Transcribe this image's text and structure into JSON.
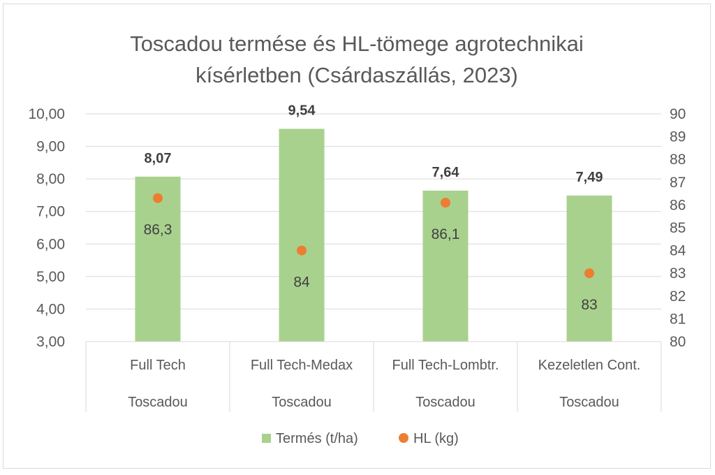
{
  "chart_data": {
    "type": "bar",
    "title_lines": [
      "Toscadou termése és HL-tömege agrotechnikai",
      "kísérletben (Csárdaszállás, 2023)"
    ],
    "categories": [
      {
        "treatment": "Full Tech",
        "variety": "Toscadou"
      },
      {
        "treatment": "Full Tech-Medax",
        "variety": "Toscadou"
      },
      {
        "treatment": "Full Tech-Lombtr.",
        "variety": "Toscadou"
      },
      {
        "treatment": "Kezeletlen Cont.",
        "variety": "Toscadou"
      }
    ],
    "series": [
      {
        "name": "Termés (t/ha)",
        "type": "bar",
        "axis": "left",
        "color": "#a9d18e",
        "values": [
          8.07,
          9.54,
          7.64,
          7.49
        ],
        "labels": [
          "8,07",
          "9,54",
          "7,64",
          "7,49"
        ]
      },
      {
        "name": "HL (kg)",
        "type": "scatter",
        "axis": "right",
        "color": "#ed7d31",
        "values": [
          86.3,
          84,
          86.1,
          83
        ],
        "labels": [
          "86,3",
          "84",
          "86,1",
          "83"
        ]
      }
    ],
    "y_left": {
      "min": 3,
      "max": 10,
      "step": 1,
      "tick_labels": [
        "3,00",
        "4,00",
        "5,00",
        "6,00",
        "7,00",
        "8,00",
        "9,00",
        "10,00"
      ]
    },
    "y_right": {
      "min": 80,
      "max": 90,
      "step": 1,
      "tick_labels": [
        "80",
        "81",
        "82",
        "83",
        "84",
        "85",
        "86",
        "87",
        "88",
        "89",
        "90"
      ]
    },
    "grid": true,
    "legend_position": "bottom",
    "colors": {
      "gridline": "#d9d9d9",
      "text": "#595959",
      "title": "#595959",
      "bar_label": "#404040"
    }
  }
}
